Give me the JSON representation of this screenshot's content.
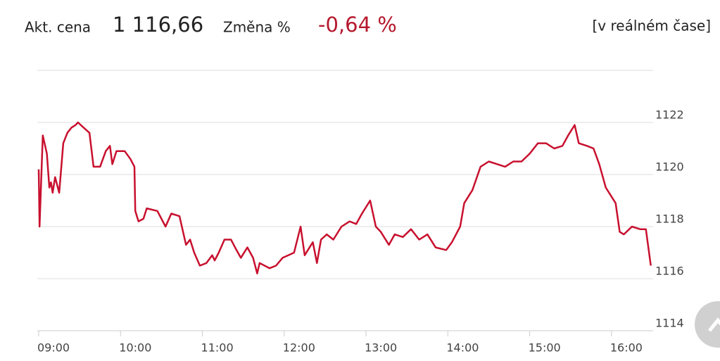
{
  "header": {
    "price_label": "Akt. cena",
    "price": "1 116,66",
    "change_label": "Změna %",
    "change": "-0,64 %",
    "realtime": "[v reálném čase]"
  },
  "chart_data": {
    "type": "line",
    "x": [
      9.0,
      9.01,
      9.05,
      9.1,
      9.13,
      9.15,
      9.17,
      9.2,
      9.25,
      9.3,
      9.35,
      9.4,
      9.45,
      9.48,
      9.55,
      9.62,
      9.67,
      9.75,
      9.82,
      9.87,
      9.9,
      9.95,
      10.05,
      10.12,
      10.17,
      10.18,
      10.22,
      10.28,
      10.32,
      10.45,
      10.55,
      10.62,
      10.72,
      10.8,
      10.85,
      10.9,
      10.97,
      11.05,
      11.12,
      11.15,
      11.2,
      11.27,
      11.35,
      11.4,
      11.47,
      11.55,
      11.62,
      11.67,
      11.7,
      11.82,
      11.9,
      11.98,
      12.05,
      12.12,
      12.2,
      12.25,
      12.35,
      12.4,
      12.45,
      12.52,
      12.6,
      12.7,
      12.8,
      12.88,
      12.95,
      13.05,
      13.12,
      13.18,
      13.28,
      13.35,
      13.45,
      13.55,
      13.65,
      13.75,
      13.85,
      13.98,
      14.05,
      14.15,
      14.2,
      14.3,
      14.4,
      14.5,
      14.6,
      14.7,
      14.8,
      14.9,
      15.0,
      15.1,
      15.2,
      15.3,
      15.4,
      15.47,
      15.55,
      15.6,
      15.7,
      15.78,
      15.85,
      15.93,
      16.05,
      16.1,
      16.15,
      16.25,
      16.35,
      16.42,
      16.48
    ],
    "series": [
      {
        "color": "#c8102e",
        "values": [
          1120.2,
          1118.0,
          1121.5,
          1120.8,
          1119.5,
          1119.7,
          1119.3,
          1119.9,
          1119.3,
          1121.2,
          1121.6,
          1121.8,
          1121.9,
          1122.0,
          1121.8,
          1121.6,
          1120.3,
          1120.3,
          1120.9,
          1121.1,
          1120.4,
          1120.9,
          1120.9,
          1120.6,
          1120.3,
          1118.6,
          1118.2,
          1118.3,
          1118.7,
          1118.6,
          1118.0,
          1118.5,
          1118.4,
          1117.3,
          1117.5,
          1117.0,
          1116.5,
          1116.6,
          1116.9,
          1116.7,
          1117.0,
          1117.5,
          1117.5,
          1117.2,
          1116.8,
          1117.2,
          1116.8,
          1116.2,
          1116.6,
          1116.4,
          1116.5,
          1116.8,
          1116.9,
          1117.0,
          1118.0,
          1116.9,
          1117.4,
          1116.6,
          1117.5,
          1117.7,
          1117.5,
          1118.0,
          1118.2,
          1118.1,
          1118.5,
          1119.0,
          1118.0,
          1117.8,
          1117.3,
          1117.7,
          1117.6,
          1117.9,
          1117.5,
          1117.7,
          1117.2,
          1117.1,
          1117.4,
          1118.0,
          1118.9,
          1119.4,
          1120.3,
          1120.5,
          1120.4,
          1120.3,
          1120.5,
          1120.5,
          1120.8,
          1121.2,
          1121.2,
          1121.0,
          1121.1,
          1121.5,
          1121.9,
          1121.2,
          1121.1,
          1121.0,
          1120.4,
          1119.5,
          1118.9,
          1117.8,
          1117.7,
          1118.0,
          1117.9,
          1117.9,
          1116.5
        ]
      }
    ],
    "xlim": [
      9,
      16.5
    ],
    "xticks": [
      {
        "value": 9,
        "label": "09:00"
      },
      {
        "value": 10,
        "label": "10:00"
      },
      {
        "value": 11,
        "label": "11:00"
      },
      {
        "value": 12,
        "label": "12:00"
      },
      {
        "value": 13,
        "label": "13:00"
      },
      {
        "value": 14,
        "label": "14:00"
      },
      {
        "value": 15,
        "label": "15:00"
      },
      {
        "value": 16,
        "label": "16:00"
      }
    ],
    "ylim": [
      1114,
      1124
    ],
    "yticks": [
      1114,
      1116,
      1118,
      1120,
      1122
    ],
    "grid": true
  }
}
